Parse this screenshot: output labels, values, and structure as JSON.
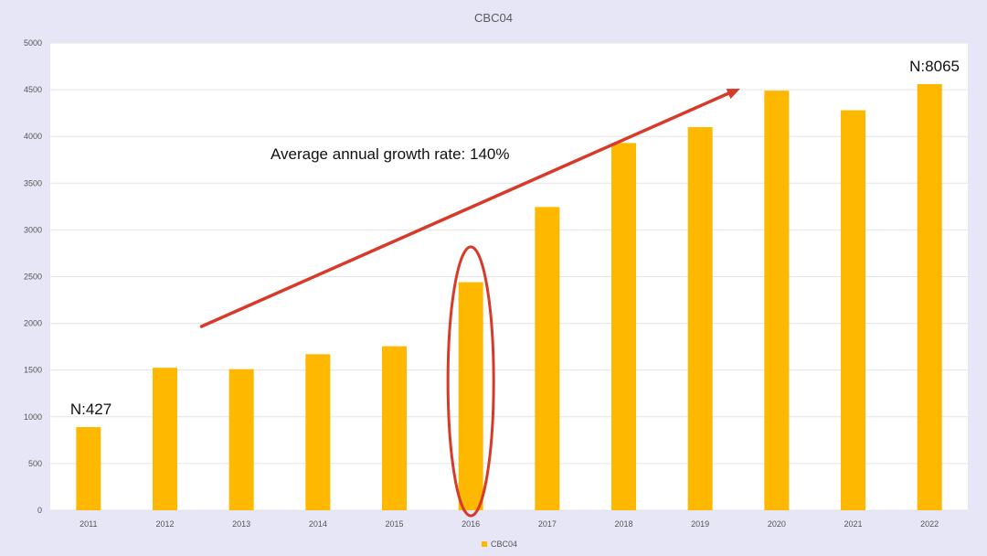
{
  "chart_data": {
    "type": "bar",
    "title": "CBC04",
    "categories": [
      "2011",
      "2012",
      "2013",
      "2014",
      "2015",
      "2016",
      "2017",
      "2018",
      "2019",
      "2020",
      "2021",
      "2022"
    ],
    "series": [
      {
        "name": "CBC04",
        "values": [
          890,
          1525,
          1510,
          1670,
          1755,
          2440,
          3245,
          3930,
          4100,
          4490,
          4280,
          4560
        ],
        "color": "#ffb800"
      }
    ],
    "ylim": [
      0,
      5000
    ],
    "yticks": [
      0,
      500,
      1000,
      1500,
      2000,
      2500,
      3000,
      3500,
      4000,
      4500,
      5000
    ],
    "grid": true,
    "legend": "bottom",
    "annotations": {
      "first_label": "N:427",
      "last_label": "N:8065",
      "growth_label": "Average annual growth rate: 140%",
      "highlight_category": "2016",
      "highlight_color": "#d83a2a",
      "arrow_color": "#d83a2a"
    }
  },
  "colors": {
    "background": "#e6e6f7",
    "plot_area": "#ffffff",
    "grid": "#e4e4e4"
  }
}
